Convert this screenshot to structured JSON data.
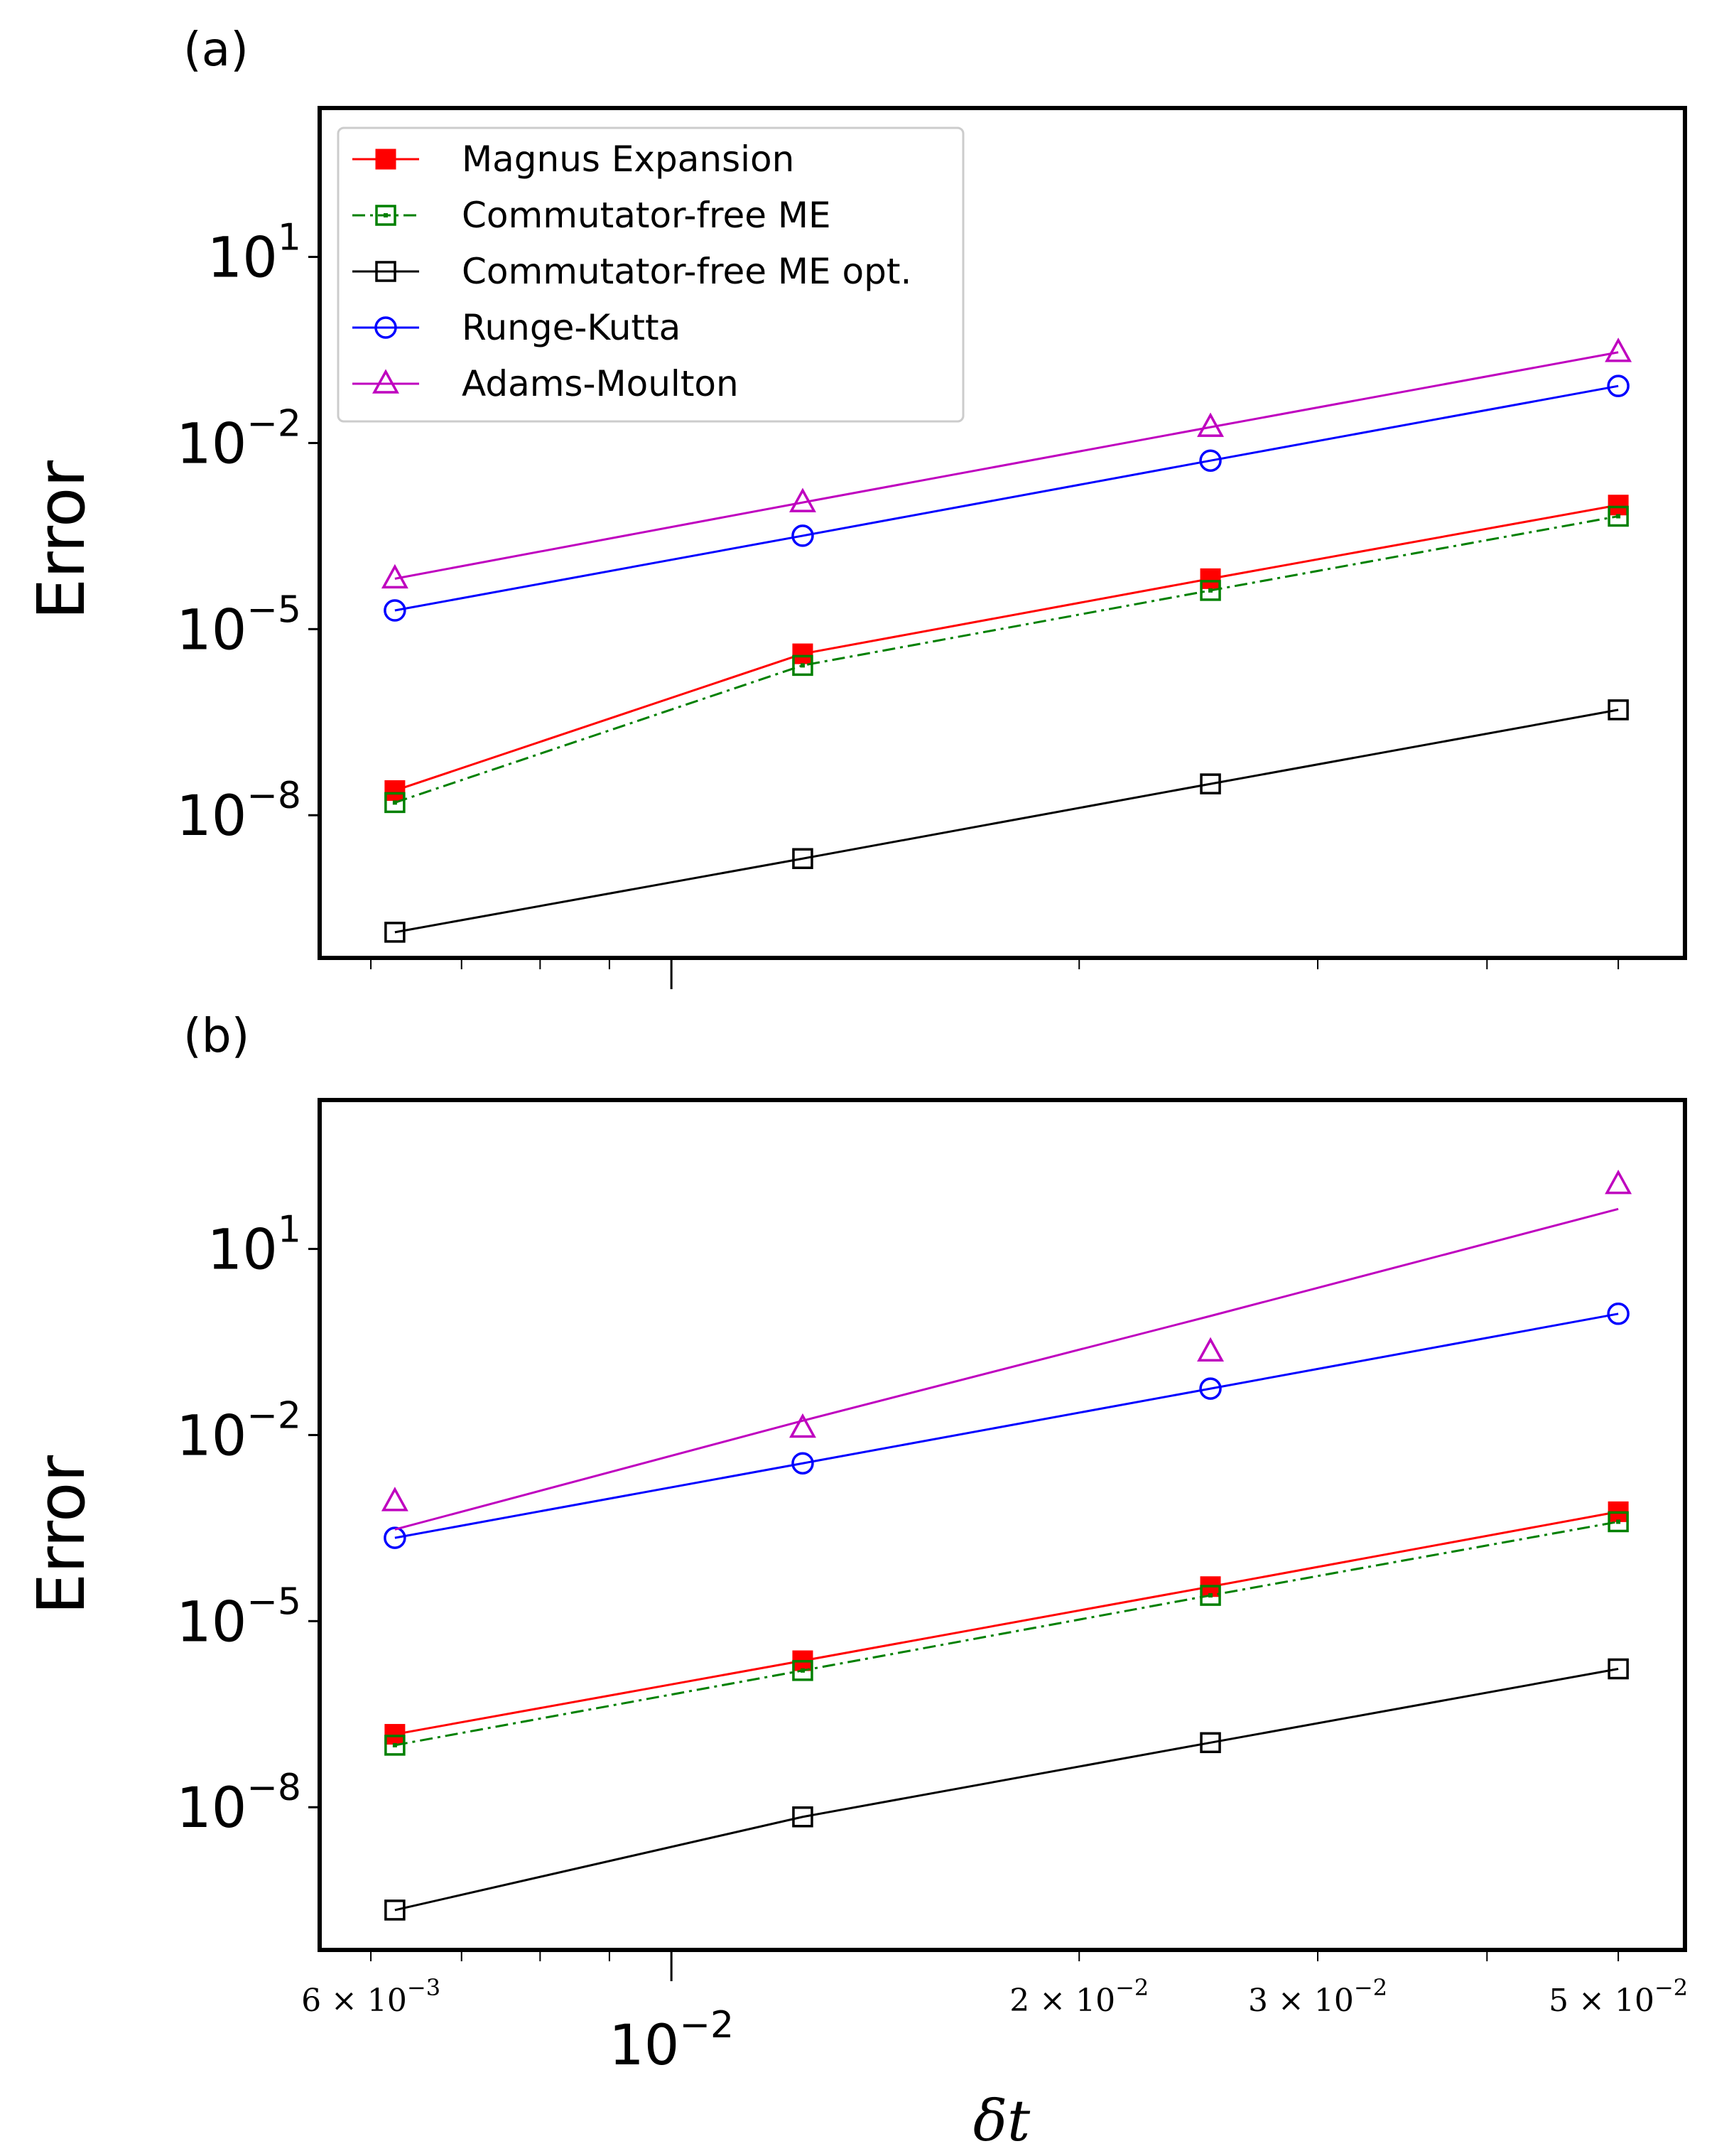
{
  "chart_data": [
    {
      "type": "line",
      "panel_label": "(a)",
      "xscale": "log",
      "yscale": "log",
      "xlabel": "δt",
      "ylabel": "Error",
      "xlim": [
        0.0055,
        0.056
      ],
      "ylim_exp": [
        -10.3,
        3.4
      ],
      "x": [
        0.00625,
        0.0125,
        0.025,
        0.05
      ],
      "series": [
        {
          "name": "Magnus Expansion",
          "color": "#ff0000",
          "marker": "square-filled",
          "line": "solid",
          "values": [
            2.5e-08,
            4e-06,
            6.5e-05,
            0.001
          ],
          "fit": [
            2.5e-08,
            4e-06,
            6.5e-05,
            0.001
          ]
        },
        {
          "name": "Commutator-free ME",
          "color": "#008000",
          "marker": "square-dot",
          "line": "dashdot",
          "values": [
            1.6e-08,
            2.6e-06,
            4.2e-05,
            0.00066
          ],
          "fit": [
            1.6e-08,
            2.6e-06,
            4.2e-05,
            0.00066
          ]
        },
        {
          "name": "Commutator-free ME opt.",
          "color": "#000000",
          "marker": "square-open",
          "line": "solid",
          "values": [
            1.3e-10,
            2e-09,
            3.2e-08,
            5e-07
          ],
          "fit": [
            1.3e-10,
            2e-09,
            3.2e-08,
            5e-07
          ]
        },
        {
          "name": "Runge-Kutta",
          "color": "#0000ff",
          "marker": "circle-open",
          "line": "solid",
          "values": [
            2e-05,
            0.00032,
            0.0052,
            0.083
          ],
          "fit": [
            2e-05,
            0.00032,
            0.0052,
            0.083
          ]
        },
        {
          "name": "Adams-Moulton",
          "color": "#bf00bf",
          "marker": "triangle-open",
          "line": "solid",
          "values": [
            6.5e-05,
            0.0011,
            0.018,
            0.29
          ],
          "fit": [
            6.5e-05,
            0.0011,
            0.018,
            0.29
          ]
        }
      ],
      "yticks": [
        {
          "base": "10",
          "exp": "1",
          "value": 10
        },
        {
          "base": "10",
          "exp": "−2",
          "value": 0.01
        },
        {
          "base": "10",
          "exp": "−5",
          "value": 1e-05
        },
        {
          "base": "10",
          "exp": "−8",
          "value": 1e-08
        }
      ],
      "legend_placement": "upper-left"
    },
    {
      "type": "line",
      "panel_label": "(b)",
      "xscale": "log",
      "yscale": "log",
      "xlabel": "δt",
      "ylabel": "Error",
      "xlim": [
        0.0055,
        0.056
      ],
      "ylim_exp": [
        -10.3,
        3.4
      ],
      "x": [
        0.00625,
        0.0125,
        0.025,
        0.05
      ],
      "series": [
        {
          "name": "Magnus Expansion",
          "color": "#ff0000",
          "marker": "square-filled",
          "line": "solid",
          "values": [
            1.5e-07,
            2.3e-06,
            3.6e-05,
            0.00058
          ],
          "fit": [
            1.5e-07,
            2.3e-06,
            3.6e-05,
            0.00058
          ]
        },
        {
          "name": "Commutator-free ME",
          "color": "#008000",
          "marker": "square-dot",
          "line": "dashdot",
          "values": [
            1e-07,
            1.6e-06,
            2.6e-05,
            0.0004
          ],
          "fit": [
            1e-07,
            1.6e-06,
            2.6e-05,
            0.0004
          ]
        },
        {
          "name": "Commutator-free ME opt.",
          "color": "#000000",
          "marker": "square-open",
          "line": "solid",
          "values": [
            2.2e-10,
            7e-09,
            1.1e-07,
            1.7e-06
          ],
          "fit": [
            2.2e-10,
            7e-09,
            1.1e-07,
            1.7e-06
          ]
        },
        {
          "name": "Runge-Kutta",
          "color": "#0000ff",
          "marker": "circle-open",
          "line": "solid",
          "values": [
            0.00022,
            0.0035,
            0.056,
            0.9
          ],
          "fit": [
            0.00022,
            0.0035,
            0.056,
            0.9
          ]
        },
        {
          "name": "Adams-Moulton",
          "color": "#bf00bf",
          "marker": "triangle-open",
          "line": "solid",
          "values": [
            0.00085,
            0.013,
            0.22,
            110
          ],
          "fit": [
            0.0003,
            0.017,
            0.83,
            44
          ]
        }
      ],
      "yticks": [
        {
          "base": "10",
          "exp": "1",
          "value": 10
        },
        {
          "base": "10",
          "exp": "−2",
          "value": 0.01
        },
        {
          "base": "10",
          "exp": "−5",
          "value": 1e-05
        },
        {
          "base": "10",
          "exp": "−8",
          "value": 1e-08
        }
      ]
    }
  ],
  "x_minor_tick_labels": [
    {
      "mant": "6",
      "exp": "−3",
      "value": 0.006
    },
    {
      "mant": "2",
      "exp": "−2",
      "value": 0.02
    },
    {
      "mant": "3",
      "exp": "−2",
      "value": 0.03
    },
    {
      "mant": "5",
      "exp": "−2",
      "value": 0.05
    }
  ],
  "x_major_tick_label": {
    "base": "10",
    "exp": "−2",
    "value": 0.01
  },
  "x_minor_tick_values": [
    0.006,
    0.007,
    0.008,
    0.009,
    0.02,
    0.03,
    0.04,
    0.05
  ]
}
